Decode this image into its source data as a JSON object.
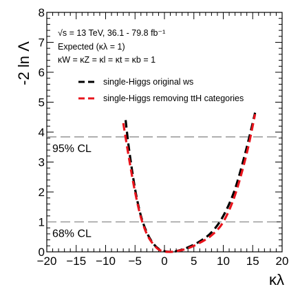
{
  "chart_data": {
    "type": "line",
    "xlabel": "κλ",
    "ylabel": "-2 ln Λ",
    "xlim": [
      -20,
      20
    ],
    "ylim": [
      0,
      8
    ],
    "xticks": [
      -20,
      -15,
      -10,
      -5,
      0,
      5,
      10,
      15,
      20
    ],
    "yticks": [
      0,
      1,
      2,
      3,
      4,
      5,
      6,
      7,
      8
    ],
    "annotations": [
      "√s = 13 TeV, 36.1 - 79.8 fb⁻¹",
      "Expected (κλ = 1)",
      "κW = κZ = κl = κt = κb = 1"
    ],
    "reference_lines": [
      {
        "label": "95% CL",
        "y": 3.84
      },
      {
        "label": "68% CL",
        "y": 1.0
      }
    ],
    "legend_position": "top-right",
    "series": [
      {
        "name": "single-Higgs original ws",
        "color": "#000000",
        "style": "dashed",
        "x": [
          -6.6,
          -6.0,
          -5.0,
          -4.0,
          -3.0,
          -2.0,
          -1.0,
          0.0,
          1.0,
          2.0,
          4.0,
          6.0,
          8.0,
          10.0,
          12.0,
          14.0,
          15.4
        ],
        "y": [
          4.4,
          3.4,
          2.1,
          1.2,
          0.65,
          0.3,
          0.1,
          0.02,
          0.0,
          0.02,
          0.15,
          0.35,
          0.65,
          1.2,
          2.1,
          3.5,
          4.65
        ]
      },
      {
        "name": "single-Higgs removing ttH categories",
        "color": "#e8141c",
        "style": "dashed",
        "x": [
          -7.0,
          -6.0,
          -5.0,
          -4.0,
          -3.0,
          -2.0,
          -1.0,
          0.0,
          1.0,
          2.0,
          4.0,
          6.0,
          8.0,
          10.0,
          12.0,
          14.0,
          15.4
        ],
        "y": [
          4.3,
          3.1,
          2.0,
          1.15,
          0.6,
          0.28,
          0.08,
          0.01,
          0.0,
          0.02,
          0.12,
          0.3,
          0.55,
          1.0,
          1.9,
          3.3,
          4.6
        ]
      }
    ]
  }
}
